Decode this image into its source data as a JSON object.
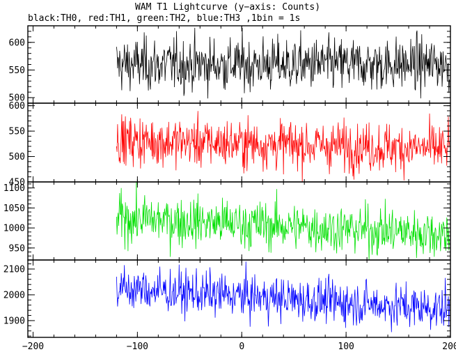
{
  "chart_data": {
    "type": "line",
    "title": "WAM T1 Lightcurve (y−axis: Counts)",
    "subtitle": "black:TH0, red:TH1, green:TH2, blue:TH3 ,1bin = 1s",
    "xlim": [
      -205,
      200
    ],
    "x_ticks": [
      -200,
      -100,
      0,
      100,
      200
    ],
    "x_tick_labels": [
      "−200",
      "−100",
      "0",
      "100",
      "200"
    ],
    "data_x_range": [
      -120,
      199
    ],
    "grid": false,
    "panels": [
      {
        "name": "TH0",
        "color": "#000000",
        "ylim": [
          490,
          630
        ],
        "y_ticks": [
          500,
          550,
          600
        ],
        "y_tick_labels": [
          "500",
          "550",
          "600"
        ],
        "mean_start": 560,
        "mean_end": 560,
        "noise_sigma": 24
      },
      {
        "name": "TH1",
        "color": "#ff0000",
        "ylim": [
          450,
          605
        ],
        "y_ticks": [
          450,
          500,
          550,
          600
        ],
        "y_tick_labels": [
          "450",
          "500",
          "550",
          "600"
        ],
        "mean_start": 532,
        "mean_end": 515,
        "noise_sigma": 24
      },
      {
        "name": "TH2",
        "color": "#00e000",
        "ylim": [
          920,
          1115
        ],
        "y_ticks": [
          950,
          1000,
          1050,
          1100
        ],
        "y_tick_labels": [
          "950",
          "1000",
          "1050",
          "1100"
        ],
        "mean_start": 1025,
        "mean_end": 985,
        "noise_sigma": 30
      },
      {
        "name": "TH3",
        "color": "#0000ff",
        "ylim": [
          1835,
          2135
        ],
        "y_ticks": [
          1900,
          2000,
          2100
        ],
        "y_tick_labels": [
          "1900",
          "2000",
          "2100"
        ],
        "mean_start": 2025,
        "mean_end": 1945,
        "noise_sigma": 42
      }
    ]
  }
}
